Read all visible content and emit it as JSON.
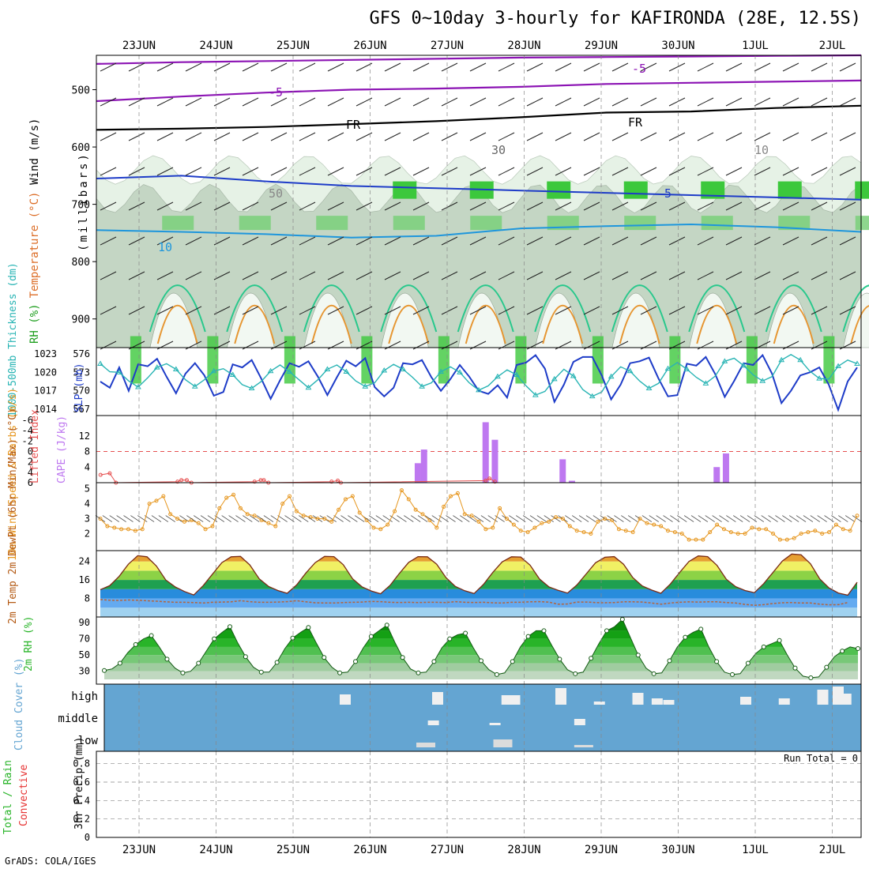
{
  "title": "GFS 0~10day 3-hourly for KAFIRONDA (28E, 12.5S)",
  "footer": "GrADS: COLA/IGES",
  "run_total": "Run Total = 0",
  "colors": {
    "rh_green": "#3cc83c",
    "rh_light": "#e6f2e6",
    "rh_mid": "#c4d6c4",
    "slp_line": "#1e3cc8",
    "thickness_line": "#28b4b4",
    "cape_bar": "#be78f0",
    "lifted_line": "#e65050",
    "wind_line": "#e6961e",
    "cloud_bg": "#64a5d2",
    "rh_2m": "#28b428",
    "grid": "#888888"
  },
  "chart_data": [
    {
      "id": "sounding",
      "type": "heatmap",
      "title": "",
      "ylabel_parts": [
        {
          "text": "RH (%)",
          "color": "#1e9e1e"
        },
        {
          "text": "Temperature (°C)",
          "color": "#dc6e28"
        },
        {
          "text": "Wind (m/s)",
          "color": "#000000"
        }
      ],
      "ylabel2": "(millibars)",
      "yticks": [
        500,
        600,
        700,
        800,
        900
      ],
      "ylim": [
        950,
        440
      ],
      "x_dates": [
        "23JUN",
        "24JUN",
        "25JUN",
        "26JUN",
        "27JUN",
        "28JUN",
        "29JUN",
        "30JUN",
        "1JUL",
        "2JUL"
      ],
      "contour_labels": [
        "-5",
        "-5",
        "FR",
        "FR",
        "10",
        "-5",
        "30",
        "50",
        "10"
      ],
      "freezing_level_mb": [
        570,
        568,
        565,
        560,
        555,
        548,
        540,
        538,
        532,
        528
      ],
      "minus5_level_mb": [
        520,
        512,
        505,
        500,
        498,
        495,
        490,
        488,
        486,
        484
      ]
    },
    {
      "id": "slp_thickness",
      "type": "line",
      "ylabel_left": "1000-500mb Thickness (dm)",
      "ylabel_right": "SLP (mb)",
      "yticks_left": [
        567,
        570,
        573,
        576
      ],
      "yticks_right": [
        1014,
        1017,
        1020,
        1023
      ],
      "series": [
        {
          "name": "SLP (mb)",
          "axis": "right",
          "values": [
            1018.5,
            1017.5,
            1020.8,
            1017.0,
            1021.3,
            1021.0,
            1022.2,
            1019.3,
            1016.6,
            1019.8,
            1021.5,
            1019.5,
            1016.2,
            1016.8,
            1021.3,
            1020.8,
            1022.0,
            1019.0,
            1015.7,
            1018.7,
            1021.5,
            1020.9,
            1021.8,
            1019.3,
            1016.3,
            1019.2,
            1021.9,
            1021.0,
            1022.3,
            1017.6,
            1016.1,
            1017.5,
            1021.5,
            1021.3,
            1022.0,
            1019.2,
            1017.0,
            1018.9,
            1021.2,
            1019.3,
            1017.0,
            1016.5,
            1017.9,
            1015.9,
            1021.2,
            1021.6,
            1022.8,
            1020.6,
            1015.2,
            1018.0,
            1021.7,
            1022.5,
            1022.5,
            1019.5,
            1015.6,
            1018.0,
            1021.5,
            1021.8,
            1022.4,
            1019.0,
            1016.1,
            1016.3,
            1021.4,
            1021.1,
            1022.5,
            1019.7,
            1016.0,
            1018.6,
            1021.5,
            1021.2,
            1022.8,
            1019.8,
            1015.0,
            1017.0,
            1019.5,
            1020.0,
            1020.8,
            1018.0,
            1013.9,
            1018.5,
            1020.8
          ]
        },
        {
          "name": "1000-500mb Thickness (dm)",
          "axis": "left",
          "values": [
            574.4,
            573.1,
            573.0,
            571.6,
            570.6,
            572.1,
            573.8,
            574.4,
            573.5,
            571.8,
            570.7,
            571.8,
            573.2,
            573.6,
            572.6,
            571.0,
            570.4,
            571.5,
            573.2,
            574.2,
            573.1,
            571.8,
            570.5,
            571.8,
            573.5,
            574.2,
            573.1,
            571.6,
            570.7,
            571.3,
            573.3,
            574.3,
            573.5,
            572.2,
            570.7,
            571.3,
            573.1,
            573.9,
            573.0,
            571.3,
            570.1,
            570.8,
            572.3,
            573.4,
            572.6,
            570.8,
            569.3,
            569.9,
            571.9,
            573.5,
            572.4,
            570.2,
            569.1,
            569.8,
            572.3,
            573.9,
            573.2,
            571.6,
            570.4,
            571.2,
            573.6,
            574.6,
            573.5,
            572.2,
            571.2,
            572.4,
            574.8,
            575.3,
            574.1,
            572.6,
            571.6,
            572.3,
            575.0,
            575.9,
            575.0,
            573.2,
            572.0,
            571.9,
            574.0,
            575.0,
            574.4
          ]
        }
      ]
    },
    {
      "id": "cape_li",
      "type": "bar",
      "ylabel_left": "Lifted Index",
      "ylabel_right": "CAPE (J/kg)",
      "yticks_left": [
        -6,
        -4,
        -2,
        0,
        2,
        4,
        6
      ],
      "yticks_right": [
        4,
        8,
        12
      ],
      "cape_bars": [
        {
          "date_index": 3.62,
          "value": 5
        },
        {
          "date_index": 3.7,
          "value": 8.5
        },
        {
          "date_index": 4.5,
          "value": 15.5
        },
        {
          "date_index": 4.62,
          "value": 11
        },
        {
          "date_index": 5.5,
          "value": 6
        },
        {
          "date_index": 5.62,
          "value": 0.5
        },
        {
          "date_index": 7.5,
          "value": 4
        },
        {
          "date_index": 7.62,
          "value": 7.5
        }
      ],
      "lifted_index_points": [
        {
          "date_index": -0.5,
          "value": 4.5
        },
        {
          "date_index": -0.38,
          "value": 4.2
        },
        {
          "date_index": -0.3,
          "value": 6
        },
        {
          "date_index": 0.5,
          "value": 5.8
        },
        {
          "date_index": 0.55,
          "value": 5.5
        },
        {
          "date_index": 0.62,
          "value": 5.5
        },
        {
          "date_index": 0.68,
          "value": 6
        },
        {
          "date_index": 1.5,
          "value": 5.8
        },
        {
          "date_index": 1.58,
          "value": 5.5
        },
        {
          "date_index": 1.62,
          "value": 5.5
        },
        {
          "date_index": 1.68,
          "value": 6
        },
        {
          "date_index": 2.5,
          "value": 5.8
        },
        {
          "date_index": 2.58,
          "value": 5.6
        },
        {
          "date_index": 2.62,
          "value": 6
        },
        {
          "date_index": 4.5,
          "value": 5.6
        },
        {
          "date_index": 4.55,
          "value": 5.2
        },
        {
          "date_index": 4.62,
          "value": 5.8
        }
      ]
    },
    {
      "id": "wind10m",
      "type": "line",
      "ylabel": "10m Wind Speed & Barbs (m/s)",
      "yticks": [
        2,
        3,
        4,
        5
      ],
      "series": [
        {
          "name": "10m Wind Speed",
          "values": [
            3.0,
            2.5,
            2.4,
            2.3,
            2.3,
            2.2,
            2.3,
            4.0,
            4.2,
            4.5,
            3.3,
            3.0,
            2.8,
            2.9,
            2.7,
            2.3,
            2.5,
            3.7,
            4.4,
            4.6,
            3.7,
            3.3,
            3.2,
            2.9,
            2.7,
            2.5,
            4.0,
            4.5,
            3.5,
            3.2,
            3.1,
            3.0,
            3.0,
            2.8,
            3.6,
            4.3,
            4.5,
            3.4,
            2.9,
            2.4,
            2.3,
            2.6,
            3.5,
            4.9,
            4.3,
            3.6,
            3.3,
            2.9,
            2.4,
            3.8,
            4.5,
            4.7,
            3.3,
            3.2,
            2.8,
            2.3,
            2.4,
            3.7,
            3.0,
            2.6,
            2.2,
            2.1,
            2.4,
            2.7,
            2.8,
            3.1,
            3.0,
            2.5,
            2.2,
            2.1,
            2.0,
            2.8,
            3.0,
            2.9,
            2.3,
            2.2,
            2.1,
            3.0,
            2.7,
            2.6,
            2.5,
            2.2,
            2.1,
            2.0,
            1.6,
            1.6,
            1.6,
            2.1,
            2.6,
            2.3,
            2.1,
            2.0,
            2.0,
            2.4,
            2.3,
            2.3,
            2.0,
            1.6,
            1.6,
            1.7,
            2.0,
            2.1,
            2.2,
            2.0,
            2.1,
            2.6,
            2.3,
            2.2,
            3.2
          ]
        }
      ]
    },
    {
      "id": "temp2m",
      "type": "area",
      "ylabel": "2m Temp 2m DewPt (6hr Min/Max) (°C)",
      "yticks": [
        8,
        16,
        24
      ],
      "series": [
        {
          "name": "2m Temp",
          "values": [
            11.8,
            13.5,
            17.5,
            22.8,
            26.5,
            26.0,
            22.0,
            16.0,
            13.0,
            11.0,
            9.5,
            13.5,
            18.5,
            23.5,
            26.0,
            26.2,
            22.5,
            16.5,
            13.2,
            11.4,
            10.2,
            13.8,
            19.0,
            23.5,
            26.2,
            26.1,
            22.6,
            16.5,
            13.0,
            11.2,
            10.0,
            13.6,
            18.8,
            23.6,
            26.1,
            26.0,
            22.8,
            17.0,
            13.2,
            11.3,
            10.1,
            14.0,
            19.2,
            23.8,
            26.0,
            25.9,
            22.4,
            16.4,
            13.0,
            11.5,
            10.3,
            13.8,
            18.6,
            23.4,
            25.8,
            26.1,
            22.8,
            17.0,
            13.4,
            11.6,
            10.2,
            14.2,
            19.2,
            24.0,
            26.4,
            26.1,
            22.3,
            16.3,
            13.1,
            11.4,
            10.5,
            14.4,
            19.3,
            24.2,
            27.2,
            26.9,
            23.0,
            16.4,
            12.5,
            10.3,
            9.4,
            15.0
          ]
        },
        {
          "name": "2m DewPt",
          "values": [
            7.5,
            7.2,
            7.1,
            7.3,
            7.2,
            7.0,
            6.8,
            6.5,
            6.3,
            6.3,
            6.2,
            6.0,
            6.3,
            6.4,
            6.5,
            7.0,
            6.6,
            6.3,
            6.3,
            6.4,
            6.6,
            7.0,
            6.5,
            6.1,
            6.0,
            6.0,
            6.2,
            6.3,
            6.4,
            6.7,
            6.6,
            6.3,
            6.2,
            6.3,
            6.2,
            6.3,
            6.3,
            6.2,
            6.6,
            6.3,
            6.2,
            6.3,
            6.1,
            6.0,
            6.3,
            6.3,
            6.5,
            6.6,
            6.4,
            5.5,
            5.6,
            6.4,
            6.4,
            6.2,
            6.1,
            6.2,
            6.5,
            6.5,
            6.4,
            6.0,
            5.5,
            6.0,
            6.3,
            6.5,
            6.4,
            6.5,
            6.5,
            6.2,
            6.0,
            5.4,
            5.0,
            5.3,
            5.8,
            6.1,
            6.2,
            6.0,
            6.0,
            5.5,
            5.2,
            5.3,
            6.2
          ]
        }
      ]
    },
    {
      "id": "rh2m",
      "type": "area",
      "ylabel": "2m RH (%)",
      "yticks": [
        30,
        50,
        70,
        90
      ],
      "series": [
        {
          "name": "2m RH",
          "values": [
            31,
            33,
            40,
            53,
            63,
            70,
            74,
            60,
            45,
            34,
            28,
            30,
            40,
            55,
            70,
            78,
            85,
            65,
            48,
            35,
            29,
            29,
            41,
            58,
            71,
            78,
            84,
            65,
            47,
            35,
            28,
            29,
            42,
            59,
            73,
            80,
            87,
            66,
            47,
            33,
            28,
            29,
            42,
            59,
            70,
            75,
            77,
            59,
            43,
            32,
            26,
            28,
            42,
            60,
            73,
            80,
            80,
            62,
            45,
            32,
            27,
            29,
            46,
            64,
            80,
            85,
            94,
            72,
            50,
            34,
            27,
            28,
            43,
            60,
            72,
            78,
            82,
            60,
            42,
            29,
            26,
            27,
            40,
            52,
            60,
            64,
            68,
            50,
            34,
            24,
            22,
            23,
            35,
            48,
            55,
            60,
            58
          ]
        }
      ]
    },
    {
      "id": "cloud",
      "type": "heatmap",
      "ylabel": "Cloud Cover (%)",
      "levels": [
        "high",
        "middle",
        "low"
      ]
    },
    {
      "id": "precip",
      "type": "bar",
      "ylabel_parts": [
        {
          "text": "Total / Rain",
          "color": "#28b428"
        },
        {
          "text": "Convective",
          "color": "#e63232"
        },
        {
          "text": "3hr Precip (mm)",
          "color": "#000000"
        }
      ],
      "yticks": [
        0,
        0.2,
        0.4,
        0.6,
        0.8
      ],
      "values": []
    }
  ]
}
